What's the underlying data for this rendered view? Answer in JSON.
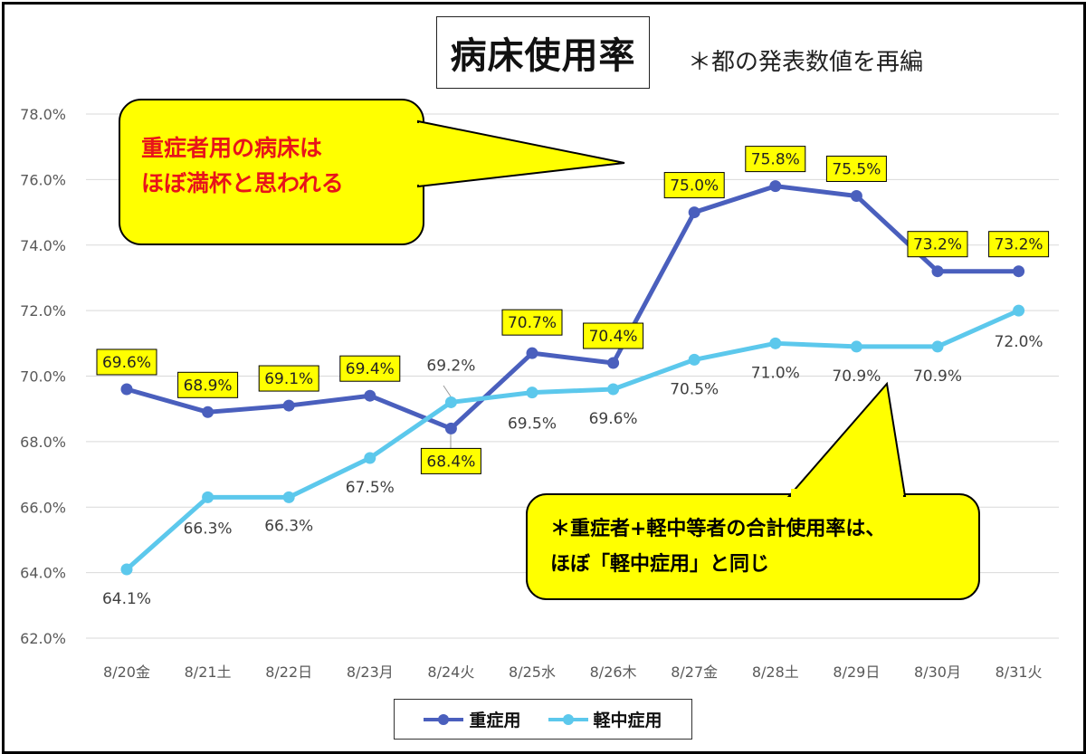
{
  "title": "病床使用率",
  "subtitle": "＊都の発表数値を再編",
  "callouts": {
    "top_left": {
      "line1": "重症者用の病床は",
      "line2": "ほぼ満杯と思われる",
      "color": "#e8141a"
    },
    "bottom_right": {
      "line1": "＊重症者+軽中等者の合計使用率は、",
      "line2": "ほぼ「軽中症用」と同じ",
      "color": "#000000"
    },
    "fill": "#ffff00"
  },
  "colors": {
    "severe": "#4a5fbd",
    "mild": "#5cc8ec",
    "label_box": "#ffff00",
    "grid": "#d9d9d9",
    "axis_text": "#595959"
  },
  "chart_data": {
    "type": "line",
    "categories": [
      "8/20金",
      "8/21土",
      "8/22日",
      "8/23月",
      "8/24火",
      "8/25水",
      "8/26木",
      "8/27金",
      "8/28土",
      "8/29日",
      "8/30月",
      "8/31火"
    ],
    "series": [
      {
        "name": "重症用",
        "values": [
          69.6,
          68.9,
          69.1,
          69.4,
          68.4,
          70.7,
          70.4,
          75.0,
          75.8,
          75.5,
          73.2,
          73.2
        ],
        "labels": [
          "69.6%",
          "68.9%",
          "69.1%",
          "69.4%",
          "68.4%",
          "70.7%",
          "70.4%",
          "75.0%",
          "75.8%",
          "75.5%",
          "73.2%",
          "73.2%"
        ]
      },
      {
        "name": "軽中症用",
        "values": [
          64.1,
          66.3,
          66.3,
          67.5,
          69.2,
          69.5,
          69.6,
          70.5,
          71.0,
          70.9,
          70.9,
          72.0
        ],
        "labels": [
          "64.1%",
          "66.3%",
          "66.3%",
          "67.5%",
          "69.2%",
          "69.5%",
          "69.6%",
          "70.5%",
          "71.0%",
          "70.9%",
          "70.9%",
          "72.0%"
        ]
      }
    ],
    "ylim": [
      62.0,
      78.0
    ],
    "yticks": [
      "62.0%",
      "64.0%",
      "66.0%",
      "68.0%",
      "70.0%",
      "72.0%",
      "74.0%",
      "76.0%",
      "78.0%"
    ],
    "grid": true,
    "legend": "bottom-center"
  }
}
